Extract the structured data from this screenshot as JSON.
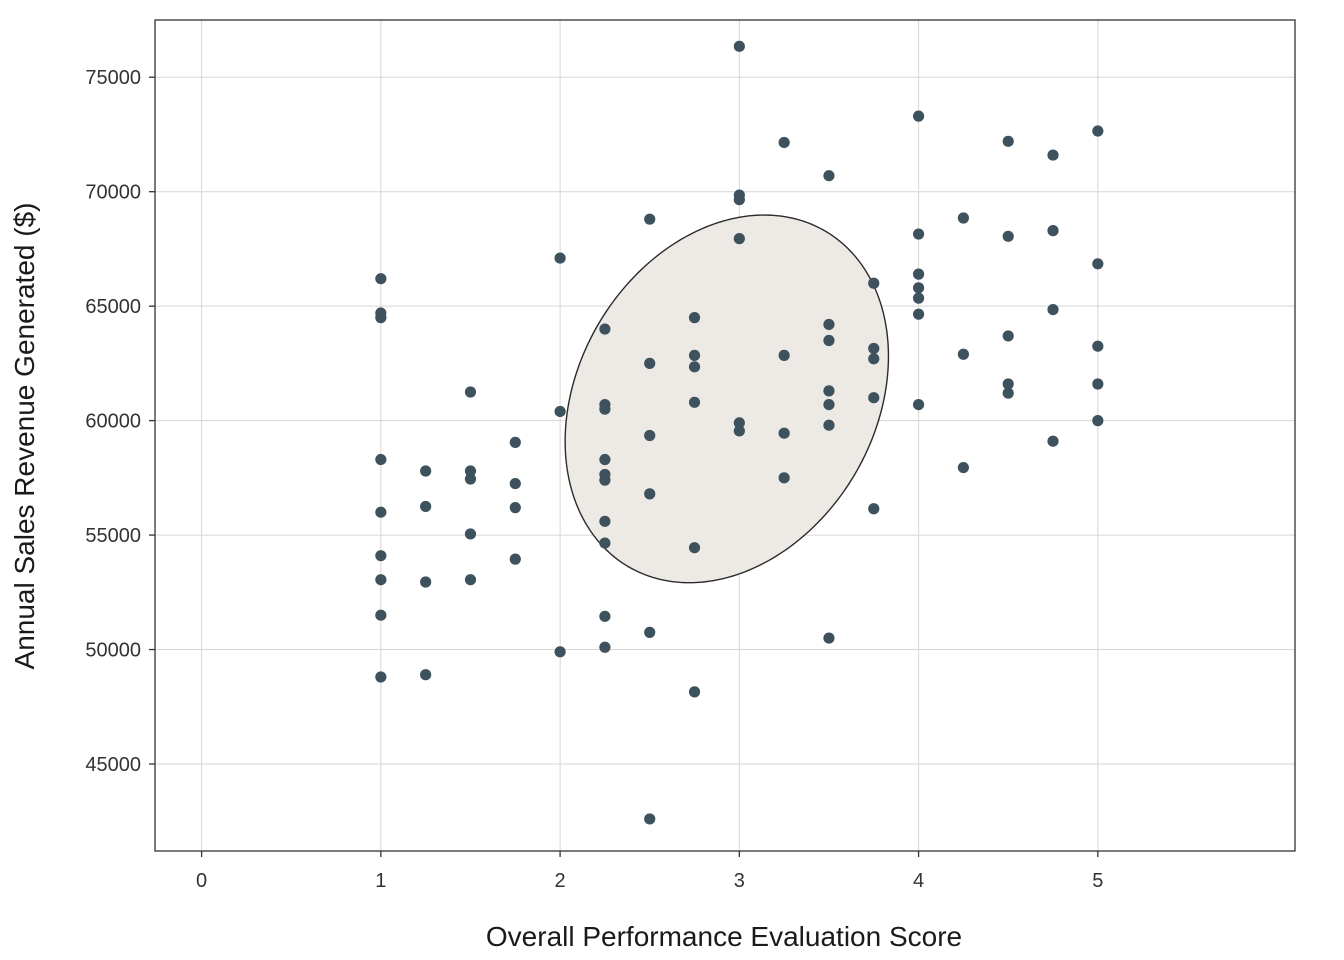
{
  "chart_data": {
    "type": "scatter",
    "title": "",
    "xlabel": "Overall Performance Evaluation Score",
    "ylabel": "Annual Sales Revenue Generated ($)",
    "xlim": [
      -0.26,
      6.1
    ],
    "ylim": [
      41200,
      77500
    ],
    "x_ticks": [
      0,
      1,
      2,
      3,
      4,
      5
    ],
    "x_tick_labels": [
      "0",
      "1",
      "2",
      "3",
      "4",
      "5"
    ],
    "y_ticks": [
      45000,
      50000,
      55000,
      60000,
      65000,
      70000,
      75000
    ],
    "y_tick_labels": [
      "45000",
      "50000",
      "55000",
      "60000",
      "65000",
      "70000",
      "75000"
    ],
    "grid": true,
    "colors": {
      "points": "#3e525e",
      "ellipse_fill": "#ede9e5",
      "ellipse_stroke": "#2b2b2b",
      "grid": "#d9d6d2"
    },
    "confidence_ellipse": {
      "center": [
        2.93,
        60950
      ],
      "semi_major_axis_direction": [
        0.8824,
        3436
      ],
      "semi_minor_axis_direction": [
        -0.1864,
        7258
      ]
    },
    "points": [
      {
        "x": 1.0,
        "y": 66200
      },
      {
        "x": 1.0,
        "y": 64700
      },
      {
        "x": 1.0,
        "y": 64500
      },
      {
        "x": 1.0,
        "y": 58300
      },
      {
        "x": 1.0,
        "y": 56000
      },
      {
        "x": 1.0,
        "y": 54100
      },
      {
        "x": 1.0,
        "y": 53050
      },
      {
        "x": 1.0,
        "y": 51500
      },
      {
        "x": 1.0,
        "y": 48800
      },
      {
        "x": 1.25,
        "y": 57800
      },
      {
        "x": 1.25,
        "y": 56250
      },
      {
        "x": 1.25,
        "y": 52950
      },
      {
        "x": 1.25,
        "y": 48900
      },
      {
        "x": 1.5,
        "y": 61250
      },
      {
        "x": 1.5,
        "y": 57800
      },
      {
        "x": 1.5,
        "y": 57450
      },
      {
        "x": 1.5,
        "y": 55050
      },
      {
        "x": 1.5,
        "y": 53050
      },
      {
        "x": 1.75,
        "y": 59050
      },
      {
        "x": 1.75,
        "y": 57250
      },
      {
        "x": 1.75,
        "y": 56200
      },
      {
        "x": 1.75,
        "y": 53950
      },
      {
        "x": 2.0,
        "y": 67100
      },
      {
        "x": 2.0,
        "y": 60400
      },
      {
        "x": 2.0,
        "y": 49900
      },
      {
        "x": 2.25,
        "y": 64000
      },
      {
        "x": 2.25,
        "y": 60700
      },
      {
        "x": 2.25,
        "y": 60500
      },
      {
        "x": 2.25,
        "y": 58300
      },
      {
        "x": 2.25,
        "y": 57650
      },
      {
        "x": 2.25,
        "y": 57400
      },
      {
        "x": 2.25,
        "y": 55600
      },
      {
        "x": 2.25,
        "y": 54650
      },
      {
        "x": 2.25,
        "y": 51450
      },
      {
        "x": 2.25,
        "y": 50100
      },
      {
        "x": 2.5,
        "y": 68800
      },
      {
        "x": 2.5,
        "y": 62500
      },
      {
        "x": 2.5,
        "y": 59350
      },
      {
        "x": 2.5,
        "y": 56800
      },
      {
        "x": 2.5,
        "y": 50750
      },
      {
        "x": 2.5,
        "y": 42600
      },
      {
        "x": 2.75,
        "y": 64500
      },
      {
        "x": 2.75,
        "y": 62850
      },
      {
        "x": 2.75,
        "y": 62350
      },
      {
        "x": 2.75,
        "y": 60800
      },
      {
        "x": 2.75,
        "y": 54450
      },
      {
        "x": 2.75,
        "y": 48150
      },
      {
        "x": 3.0,
        "y": 76350
      },
      {
        "x": 3.0,
        "y": 69850
      },
      {
        "x": 3.0,
        "y": 69650
      },
      {
        "x": 3.0,
        "y": 67950
      },
      {
        "x": 3.0,
        "y": 59900
      },
      {
        "x": 3.0,
        "y": 59550
      },
      {
        "x": 3.25,
        "y": 72150
      },
      {
        "x": 3.25,
        "y": 62850
      },
      {
        "x": 3.25,
        "y": 59450
      },
      {
        "x": 3.25,
        "y": 57500
      },
      {
        "x": 3.5,
        "y": 70700
      },
      {
        "x": 3.5,
        "y": 64200
      },
      {
        "x": 3.5,
        "y": 63500
      },
      {
        "x": 3.5,
        "y": 61300
      },
      {
        "x": 3.5,
        "y": 60700
      },
      {
        "x": 3.5,
        "y": 59800
      },
      {
        "x": 3.5,
        "y": 50500
      },
      {
        "x": 3.75,
        "y": 66000
      },
      {
        "x": 3.75,
        "y": 63150
      },
      {
        "x": 3.75,
        "y": 62700
      },
      {
        "x": 3.75,
        "y": 61000
      },
      {
        "x": 3.75,
        "y": 56150
      },
      {
        "x": 4.0,
        "y": 73300
      },
      {
        "x": 4.0,
        "y": 68150
      },
      {
        "x": 4.0,
        "y": 66400
      },
      {
        "x": 4.0,
        "y": 65800
      },
      {
        "x": 4.0,
        "y": 65350
      },
      {
        "x": 4.0,
        "y": 64650
      },
      {
        "x": 4.0,
        "y": 60700
      },
      {
        "x": 4.25,
        "y": 68850
      },
      {
        "x": 4.25,
        "y": 62900
      },
      {
        "x": 4.25,
        "y": 57950
      },
      {
        "x": 4.5,
        "y": 72200
      },
      {
        "x": 4.5,
        "y": 68050
      },
      {
        "x": 4.5,
        "y": 63700
      },
      {
        "x": 4.5,
        "y": 61600
      },
      {
        "x": 4.5,
        "y": 61200
      },
      {
        "x": 4.75,
        "y": 71600
      },
      {
        "x": 4.75,
        "y": 68300
      },
      {
        "x": 4.75,
        "y": 64850
      },
      {
        "x": 4.75,
        "y": 59100
      },
      {
        "x": 5.0,
        "y": 72650
      },
      {
        "x": 5.0,
        "y": 66850
      },
      {
        "x": 5.0,
        "y": 63250
      },
      {
        "x": 5.0,
        "y": 61600
      },
      {
        "x": 5.0,
        "y": 60000
      }
    ]
  }
}
